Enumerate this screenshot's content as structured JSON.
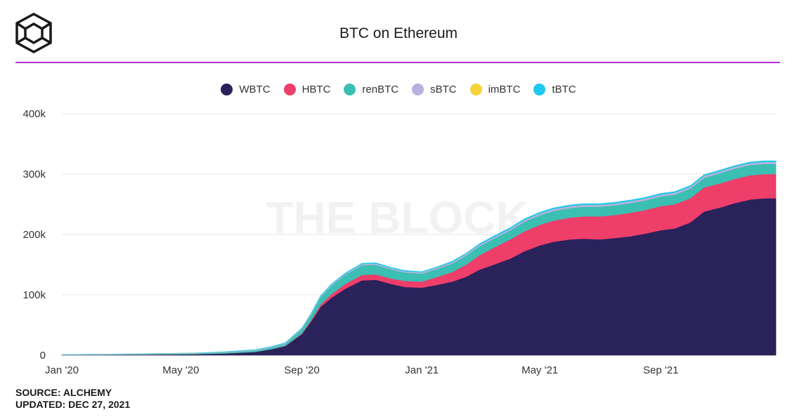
{
  "header": {
    "title": "BTC on Ethereum"
  },
  "footer": {
    "source": "SOURCE: ALCHEMY",
    "updated": "UPDATED: DEC 27, 2021"
  },
  "watermark": "THE BLOCK",
  "colors": {
    "accent_rule": "#b12ed6",
    "WBTC": "#2a225a",
    "HBTC": "#ee3e6a",
    "renBTC": "#3bbfb2",
    "sBTC": "#b8b0e0",
    "imBTC": "#f5d33a",
    "tBTC": "#1ec8f0"
  },
  "chart_data": {
    "type": "area",
    "stacked": true,
    "title": "BTC on Ethereum",
    "xlabel": "",
    "ylabel": "",
    "ylim": [
      0,
      400000
    ],
    "yticks": [
      0,
      100000,
      200000,
      300000,
      400000
    ],
    "ytick_labels": [
      "0",
      "100k",
      "200k",
      "300k",
      "400k"
    ],
    "xticks": [
      "2020-01-01",
      "2020-05-01",
      "2020-09-01",
      "2021-01-01",
      "2021-05-01",
      "2021-09-01"
    ],
    "xtick_labels": [
      "Jan '20",
      "May '20",
      "Sep '20",
      "Jan '21",
      "May '21",
      "Sep '21"
    ],
    "xlim": [
      "2020-01-01",
      "2021-12-27"
    ],
    "grid": "horizontal",
    "legend_position": "top-center",
    "x": [
      "2020-01-01",
      "2020-02-15",
      "2020-04-01",
      "2020-05-15",
      "2020-06-15",
      "2020-07-15",
      "2020-08-01",
      "2020-08-15",
      "2020-09-01",
      "2020-09-10",
      "2020-09-20",
      "2020-10-01",
      "2020-10-15",
      "2020-11-01",
      "2020-11-15",
      "2020-12-01",
      "2020-12-15",
      "2021-01-01",
      "2021-01-15",
      "2021-02-01",
      "2021-02-15",
      "2021-03-01",
      "2021-03-15",
      "2021-04-01",
      "2021-04-15",
      "2021-05-01",
      "2021-05-15",
      "2021-06-01",
      "2021-06-15",
      "2021-07-01",
      "2021-07-15",
      "2021-08-01",
      "2021-08-15",
      "2021-09-01",
      "2021-09-15",
      "2021-10-01",
      "2021-10-15",
      "2021-11-01",
      "2021-11-15",
      "2021-12-01",
      "2021-12-15",
      "2021-12-27"
    ],
    "series": [
      {
        "name": "WBTC",
        "values": [
          500,
          700,
          1200,
          1800,
          3000,
          5500,
          10000,
          15000,
          35000,
          55000,
          80000,
          95000,
          110000,
          124000,
          125000,
          118000,
          113000,
          112000,
          116000,
          122000,
          130000,
          142000,
          150000,
          160000,
          172000,
          182000,
          188000,
          192000,
          193000,
          192000,
          194000,
          197000,
          201000,
          207000,
          210000,
          220000,
          238000,
          245000,
          252000,
          258000,
          260000,
          260000
        ]
      },
      {
        "name": "HBTC",
        "values": [
          0,
          0,
          0,
          0,
          0,
          0,
          0,
          500,
          1000,
          2000,
          4000,
          6000,
          8000,
          9000,
          9000,
          9000,
          10000,
          10000,
          13000,
          16000,
          20000,
          24000,
          28000,
          32000,
          33000,
          34000,
          35000,
          36000,
          37000,
          38000,
          38000,
          39000,
          39000,
          40000,
          40000,
          40000,
          40000,
          40000,
          40000,
          40000,
          40000,
          40000
        ]
      },
      {
        "name": "renBTC",
        "values": [
          200,
          400,
          700,
          1000,
          1500,
          2000,
          2500,
          3000,
          7000,
          9000,
          12000,
          14000,
          15000,
          16000,
          16000,
          15000,
          14000,
          13000,
          13000,
          14000,
          15000,
          15000,
          15000,
          15000,
          16000,
          16000,
          16000,
          16000,
          16000,
          16000,
          16000,
          16000,
          16000,
          16000,
          16000,
          16000,
          16000,
          17000,
          17000,
          17000,
          17000,
          17000
        ]
      },
      {
        "name": "sBTC",
        "values": [
          500,
          600,
          700,
          800,
          900,
          1000,
          1100,
          1200,
          1300,
          1400,
          1500,
          1600,
          1700,
          1800,
          1900,
          2000,
          2000,
          2000,
          2100,
          2200,
          2300,
          2400,
          2500,
          2600,
          2700,
          2800,
          2900,
          3000,
          3000,
          3000,
          3000,
          3000,
          3000,
          3000,
          3000,
          3000,
          3000,
          3000,
          3000,
          3000,
          3000,
          3000
        ]
      },
      {
        "name": "imBTC",
        "values": [
          50,
          60,
          70,
          80,
          90,
          100,
          100,
          100,
          100,
          100,
          100,
          100,
          100,
          100,
          100,
          100,
          100,
          100,
          100,
          100,
          100,
          100,
          100,
          100,
          100,
          100,
          100,
          100,
          100,
          100,
          100,
          100,
          100,
          100,
          100,
          100,
          100,
          100,
          100,
          100,
          100,
          100
        ]
      },
      {
        "name": "tBTC",
        "values": [
          0,
          0,
          0,
          0,
          400,
          600,
          700,
          800,
          800,
          900,
          1000,
          1100,
          1200,
          1300,
          1300,
          1300,
          1300,
          1300,
          1400,
          1500,
          1600,
          1600,
          1700,
          1800,
          1900,
          2000,
          2000,
          2000,
          2000,
          2000,
          2000,
          2000,
          2000,
          2000,
          2000,
          2000,
          2000,
          2000,
          2000,
          2000,
          2000,
          2000
        ]
      }
    ]
  }
}
